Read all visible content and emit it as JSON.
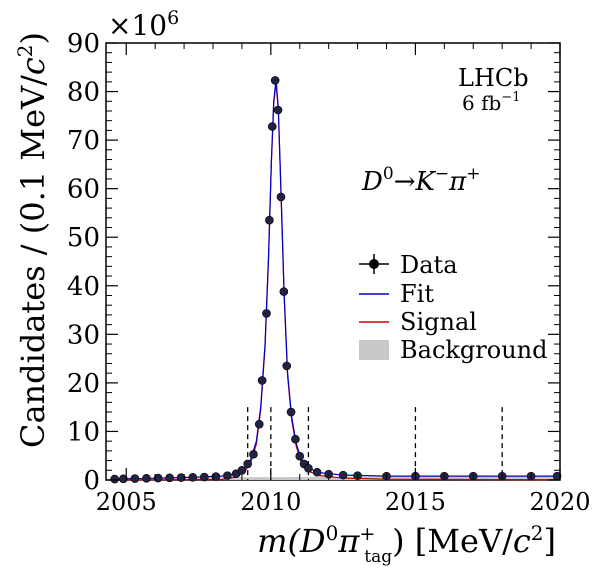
{
  "chart_data": {
    "type": "scatter",
    "title": "",
    "xlabel": {
      "prefix": "m(",
      "D": "D",
      "D_sup": "0",
      "pi": "π",
      "pi_sup": "+",
      "pi_sub": "tag",
      "suffix": ") [MeV/",
      "c": "c",
      "c_sup": "2",
      "close": "]"
    },
    "ylabel": {
      "text": "Candidates / (0.1 MeV/",
      "c": "c",
      "c_sup": "2",
      "close": ")"
    },
    "multiplier": {
      "base": "×10",
      "exp": "6"
    },
    "xlim": [
      2004.3,
      2020
    ],
    "ylim": [
      0,
      90
    ],
    "x_ticks": [
      "2005",
      "2010",
      "2015",
      "2020"
    ],
    "y_ticks": [
      "0",
      "10",
      "20",
      "30",
      "40",
      "50",
      "60",
      "70",
      "80",
      "90"
    ],
    "annotations": {
      "experiment": "LHCb",
      "lumi": "6 fb",
      "lumi_sup": "−1",
      "decay": {
        "D": "D",
        "D_sup": "0",
        "arrow": "→",
        "K": "K",
        "K_sup": "−",
        "pi": "π",
        "pi_sup": "+"
      }
    },
    "legend": {
      "position": "right",
      "entries": [
        {
          "label": "Data",
          "style": "marker"
        },
        {
          "label": "Fit",
          "style": "line",
          "color": "#0000cc"
        },
        {
          "label": "Signal",
          "style": "line",
          "color": "#cc0000"
        },
        {
          "label": "Background",
          "style": "fill",
          "color": "#c8c8c8"
        }
      ]
    },
    "vertical_dashed_lines": [
      2009.2,
      2010.0,
      2011.3,
      2015.0,
      2018.0
    ],
    "colors": {
      "fit": "#0000cc",
      "signal": "#cc0000",
      "background": "#c8c8c8",
      "data": "#000000"
    },
    "series": [
      {
        "name": "Data",
        "points": [
          {
            "x": 2004.6,
            "y": 0.2
          },
          {
            "x": 2004.9,
            "y": 0.25
          },
          {
            "x": 2005.3,
            "y": 0.3
          },
          {
            "x": 2005.7,
            "y": 0.35
          },
          {
            "x": 2006.1,
            "y": 0.4
          },
          {
            "x": 2006.5,
            "y": 0.45
          },
          {
            "x": 2006.9,
            "y": 0.5
          },
          {
            "x": 2007.3,
            "y": 0.55
          },
          {
            "x": 2007.7,
            "y": 0.6
          },
          {
            "x": 2008.1,
            "y": 0.7
          },
          {
            "x": 2008.5,
            "y": 0.9
          },
          {
            "x": 2008.8,
            "y": 1.3
          },
          {
            "x": 2009.0,
            "y": 2.0
          },
          {
            "x": 2009.2,
            "y": 3.3
          },
          {
            "x": 2009.4,
            "y": 5.3
          },
          {
            "x": 2009.6,
            "y": 11.5
          },
          {
            "x": 2009.7,
            "y": 20.5
          },
          {
            "x": 2009.85,
            "y": 34.3
          },
          {
            "x": 2009.95,
            "y": 53.5
          },
          {
            "x": 2010.05,
            "y": 72.8
          },
          {
            "x": 2010.15,
            "y": 82.3
          },
          {
            "x": 2010.25,
            "y": 76.2
          },
          {
            "x": 2010.35,
            "y": 58.3
          },
          {
            "x": 2010.45,
            "y": 38.8
          },
          {
            "x": 2010.55,
            "y": 23.5
          },
          {
            "x": 2010.7,
            "y": 14.0
          },
          {
            "x": 2010.85,
            "y": 8.4
          },
          {
            "x": 2011.0,
            "y": 4.9
          },
          {
            "x": 2011.15,
            "y": 3.3
          },
          {
            "x": 2011.3,
            "y": 2.4
          },
          {
            "x": 2011.6,
            "y": 1.6
          },
          {
            "x": 2012.0,
            "y": 1.2
          },
          {
            "x": 2012.5,
            "y": 1.0
          },
          {
            "x": 2013.0,
            "y": 0.9
          },
          {
            "x": 2014.0,
            "y": 0.8
          },
          {
            "x": 2015.0,
            "y": 0.8
          },
          {
            "x": 2016.0,
            "y": 0.8
          },
          {
            "x": 2017.0,
            "y": 0.8
          },
          {
            "x": 2018.0,
            "y": 0.8
          },
          {
            "x": 2019.0,
            "y": 0.8
          },
          {
            "x": 2019.9,
            "y": 0.8
          }
        ]
      },
      {
        "name": "Fit",
        "points": [
          {
            "x": 2004.5,
            "y": 0.2
          },
          {
            "x": 2005.5,
            "y": 0.3
          },
          {
            "x": 2006.5,
            "y": 0.45
          },
          {
            "x": 2007.5,
            "y": 0.6
          },
          {
            "x": 2008.3,
            "y": 0.8
          },
          {
            "x": 2008.8,
            "y": 1.3
          },
          {
            "x": 2009.1,
            "y": 2.5
          },
          {
            "x": 2009.3,
            "y": 4.2
          },
          {
            "x": 2009.5,
            "y": 8.0
          },
          {
            "x": 2009.65,
            "y": 15.0
          },
          {
            "x": 2009.8,
            "y": 28.0
          },
          {
            "x": 2009.92,
            "y": 46.0
          },
          {
            "x": 2010.02,
            "y": 66.0
          },
          {
            "x": 2010.1,
            "y": 78.0
          },
          {
            "x": 2010.18,
            "y": 82.5
          },
          {
            "x": 2010.26,
            "y": 76.5
          },
          {
            "x": 2010.36,
            "y": 58.0
          },
          {
            "x": 2010.46,
            "y": 38.5
          },
          {
            "x": 2010.58,
            "y": 22.0
          },
          {
            "x": 2010.72,
            "y": 13.0
          },
          {
            "x": 2010.88,
            "y": 7.5
          },
          {
            "x": 2011.05,
            "y": 4.3
          },
          {
            "x": 2011.3,
            "y": 2.4
          },
          {
            "x": 2011.7,
            "y": 1.5
          },
          {
            "x": 2012.5,
            "y": 1.0
          },
          {
            "x": 2014.0,
            "y": 0.8
          },
          {
            "x": 2017.0,
            "y": 0.8
          },
          {
            "x": 2020.0,
            "y": 0.8
          }
        ]
      },
      {
        "name": "Signal",
        "points": [
          {
            "x": 2004.5,
            "y": 0.0
          },
          {
            "x": 2008.3,
            "y": 0.1
          },
          {
            "x": 2008.8,
            "y": 0.6
          },
          {
            "x": 2009.1,
            "y": 1.8
          },
          {
            "x": 2009.3,
            "y": 3.5
          },
          {
            "x": 2009.5,
            "y": 7.4
          },
          {
            "x": 2009.65,
            "y": 14.4
          },
          {
            "x": 2009.8,
            "y": 27.4
          },
          {
            "x": 2009.92,
            "y": 45.4
          },
          {
            "x": 2010.02,
            "y": 65.4
          },
          {
            "x": 2010.1,
            "y": 77.4
          },
          {
            "x": 2010.18,
            "y": 81.9
          },
          {
            "x": 2010.26,
            "y": 75.9
          },
          {
            "x": 2010.36,
            "y": 57.4
          },
          {
            "x": 2010.46,
            "y": 37.9
          },
          {
            "x": 2010.58,
            "y": 21.4
          },
          {
            "x": 2010.72,
            "y": 12.4
          },
          {
            "x": 2010.88,
            "y": 6.9
          },
          {
            "x": 2011.05,
            "y": 3.7
          },
          {
            "x": 2011.3,
            "y": 1.8
          },
          {
            "x": 2011.7,
            "y": 0.9
          },
          {
            "x": 2012.5,
            "y": 0.4
          },
          {
            "x": 2014.0,
            "y": 0.15
          },
          {
            "x": 2020.0,
            "y": 0.05
          }
        ]
      },
      {
        "name": "Background",
        "points": [
          {
            "x": 2004.5,
            "y": 0.2
          },
          {
            "x": 2006.0,
            "y": 0.35
          },
          {
            "x": 2008.0,
            "y": 0.55
          },
          {
            "x": 2010.0,
            "y": 0.6
          },
          {
            "x": 2012.0,
            "y": 0.65
          },
          {
            "x": 2016.0,
            "y": 0.7
          },
          {
            "x": 2020.0,
            "y": 0.75
          }
        ]
      }
    ]
  }
}
